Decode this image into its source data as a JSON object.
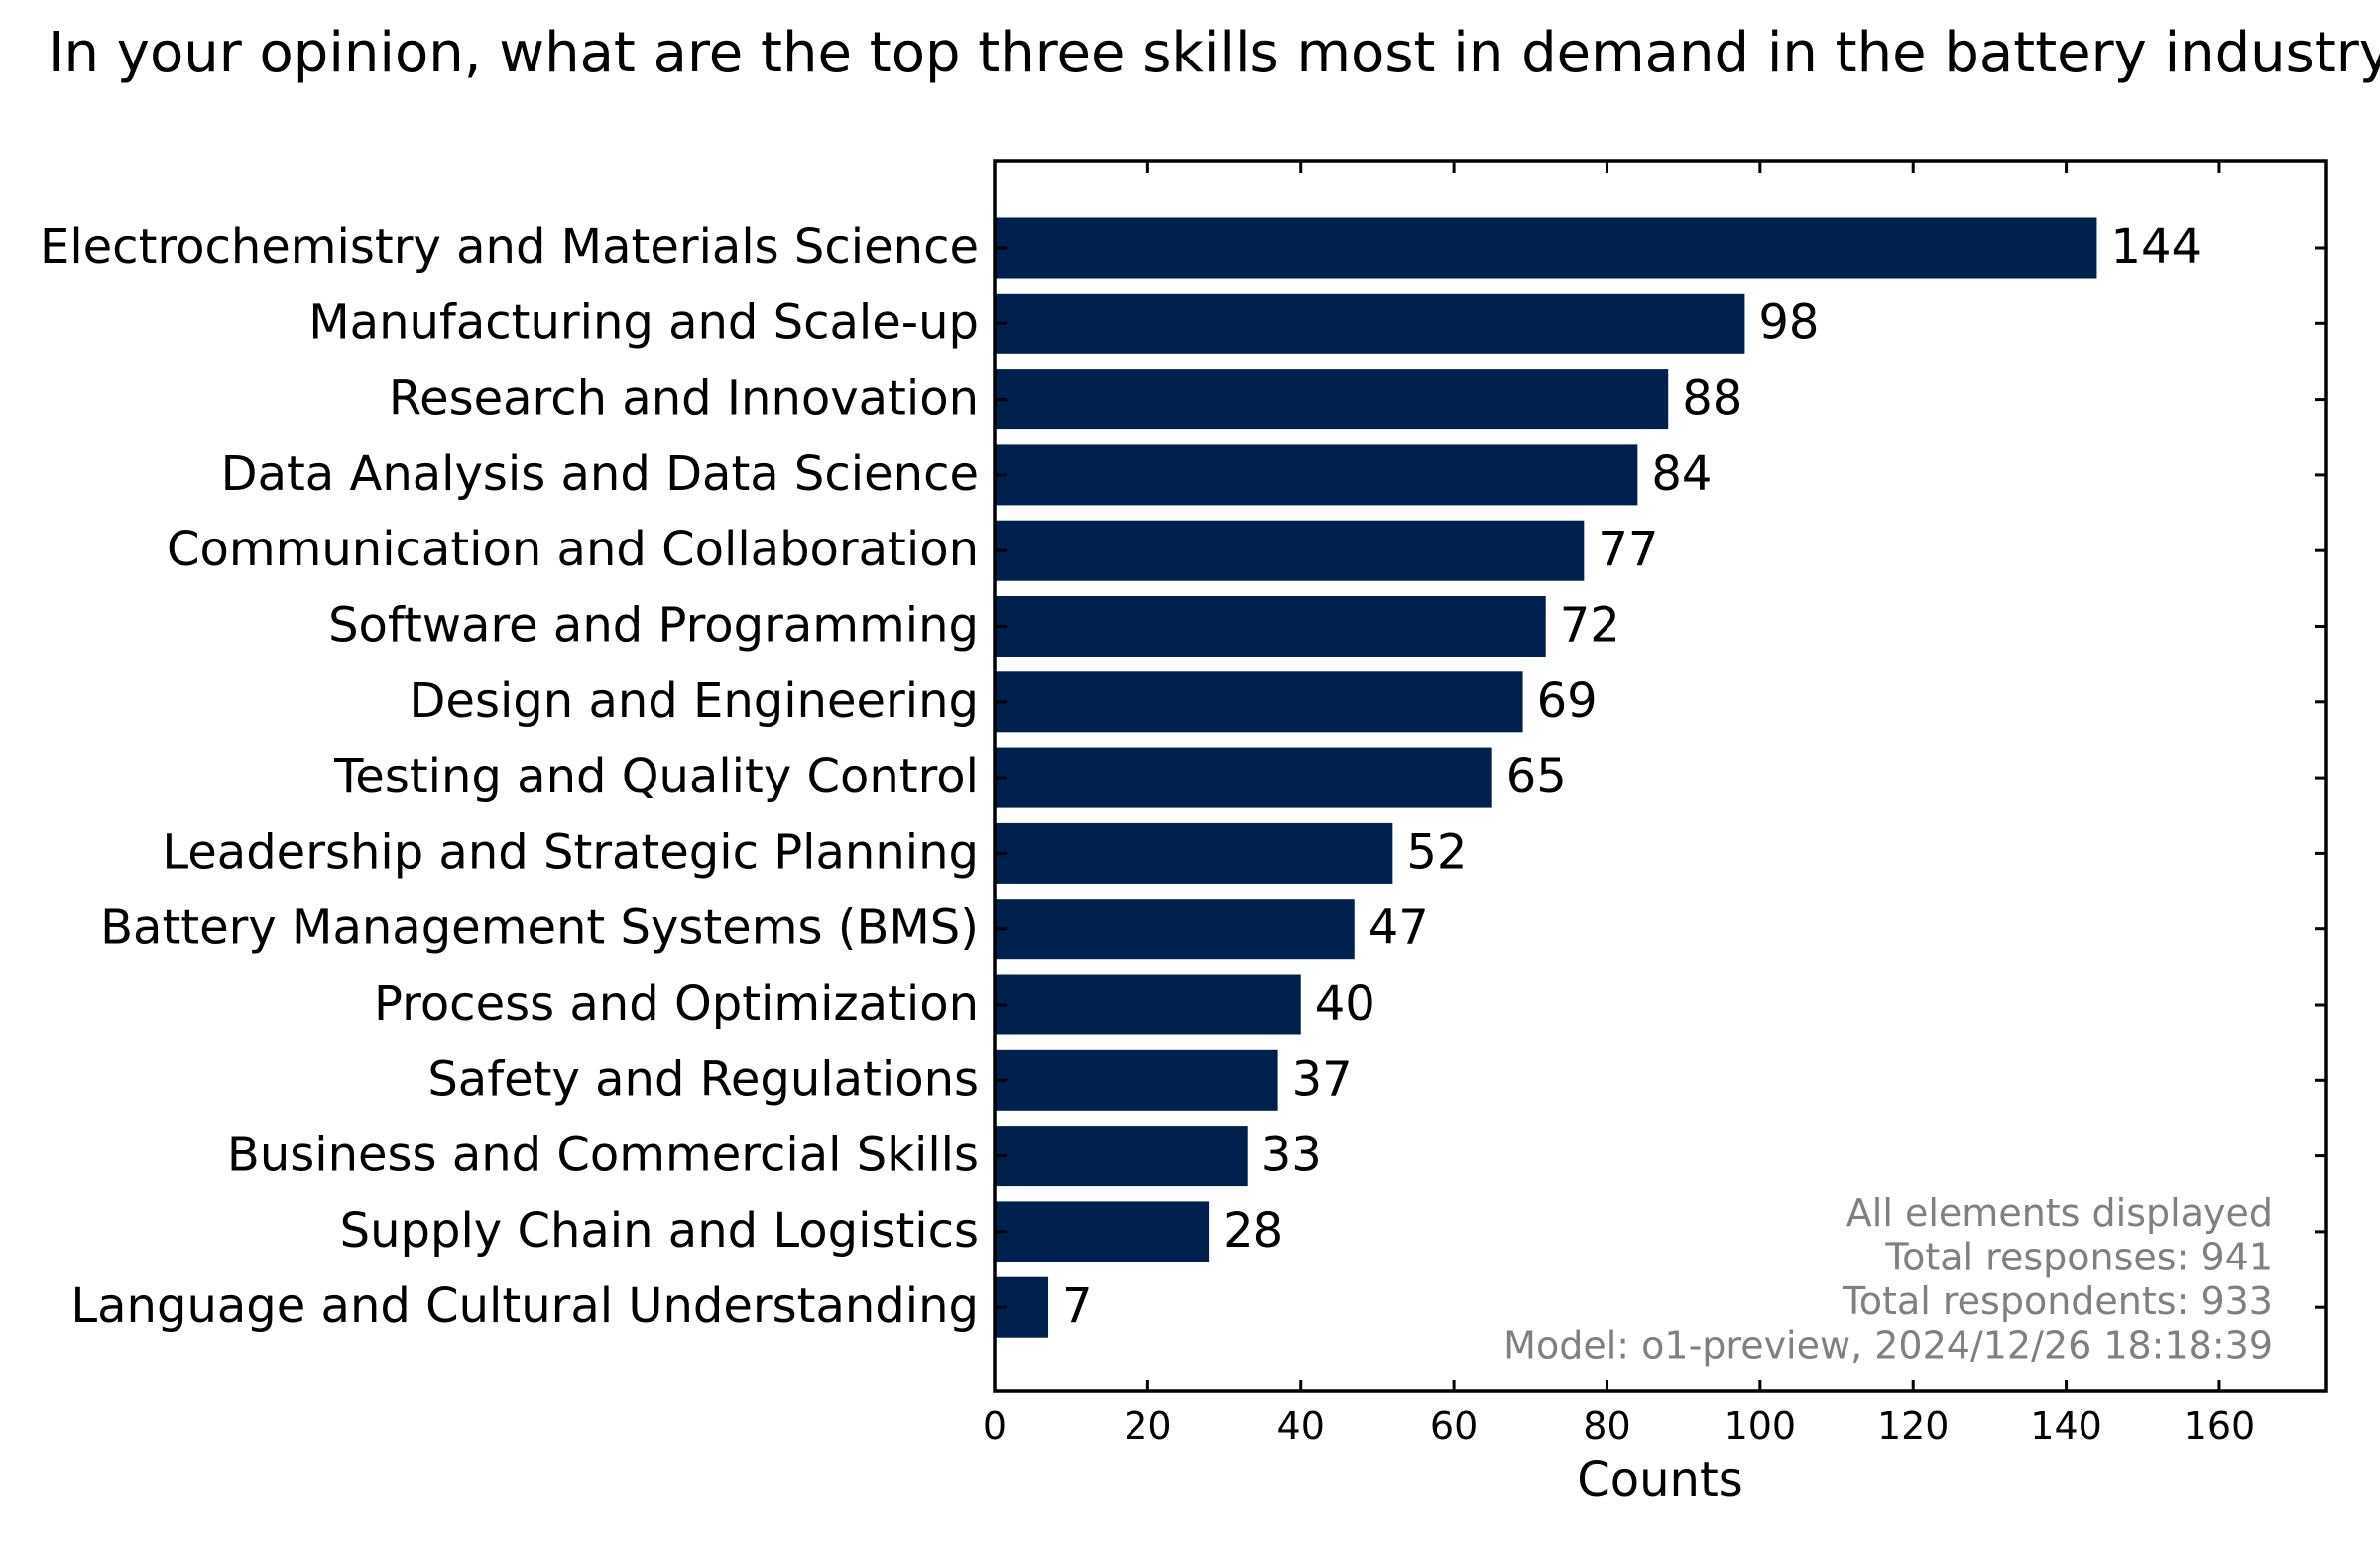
{
  "chart_data": {
    "type": "bar",
    "orientation": "horizontal",
    "title": "In your opinion, what are the top three skills most in demand in the battery industry?",
    "xlabel": "Counts",
    "ylabel": "",
    "xlim": [
      0,
      174
    ],
    "xticks": [
      0,
      20,
      40,
      60,
      80,
      100,
      120,
      140,
      160
    ],
    "grid": false,
    "categories": [
      "Electrochemistry and Materials Science",
      "Manufacturing and Scale-up",
      "Research and Innovation",
      "Data Analysis and Data Science",
      "Communication and Collaboration",
      "Software and Programming",
      "Design and Engineering",
      "Testing and Quality Control",
      "Leadership and Strategic Planning",
      "Battery Management Systems (BMS)",
      "Process and Optimization",
      "Safety and Regulations",
      "Business and Commercial Skills",
      "Supply Chain and Logistics",
      "Language and Cultural Understanding"
    ],
    "values": [
      144,
      98,
      88,
      84,
      77,
      72,
      69,
      65,
      52,
      47,
      40,
      37,
      33,
      28,
      7
    ],
    "bar_color": "#00204e",
    "annotation_color": "#808080",
    "annotations": [
      "All elements displayed",
      "Total responses: 941",
      "Total respondents: 933",
      "Model: o1-preview, 2024/12/26 18:18:39"
    ]
  }
}
